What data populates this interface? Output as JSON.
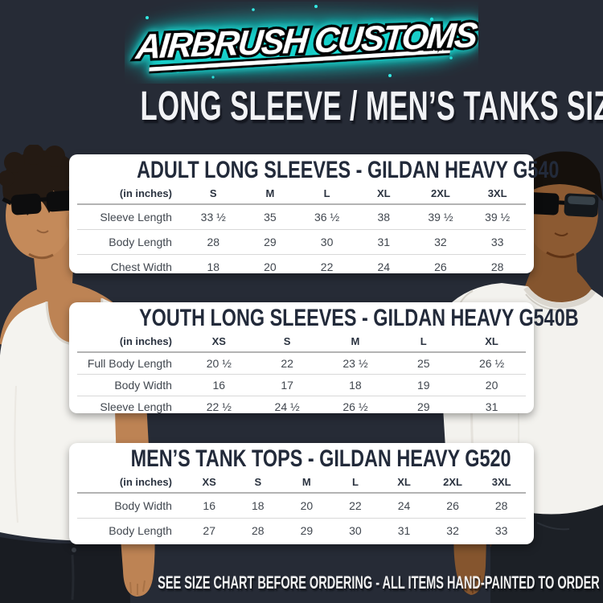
{
  "colors": {
    "bg": "#262b36",
    "card": "#ffffff",
    "title-navy": "#222a3a",
    "heading-white": "#f2f3f6",
    "accent-cyan": "#1fe3dc",
    "table-text": "#41474f"
  },
  "logo": {
    "text": "AIRBRUSH CUSTOMS"
  },
  "heading": "LONG SLEEVE / MEN’S TANKS SIZE CHART",
  "footer": "SEE SIZE CHART BEFORE ORDERING - ALL ITEMS HAND-PAINTED TO ORDER",
  "tables": [
    {
      "title": "ADULT LONG SLEEVES - GILDAN HEAVY G540",
      "unit_label": "(in inches)",
      "columns": [
        "S",
        "M",
        "L",
        "XL",
        "2XL",
        "3XL"
      ],
      "rows": [
        {
          "label": "Sleeve Length",
          "values": [
            "33 ½",
            "35",
            "36 ½",
            "38",
            "39 ½",
            "39 ½"
          ]
        },
        {
          "label": "Body Length",
          "values": [
            "28",
            "29",
            "30",
            "31",
            "32",
            "33"
          ]
        },
        {
          "label": "Chest Width",
          "values": [
            "18",
            "20",
            "22",
            "24",
            "26",
            "28"
          ]
        }
      ]
    },
    {
      "title": "YOUTH LONG SLEEVES - GILDAN HEAVY G540B",
      "unit_label": "(in inches)",
      "columns": [
        "XS",
        "S",
        "M",
        "L",
        "XL"
      ],
      "rows": [
        {
          "label": "Full Body Length",
          "values": [
            "20 ½",
            "22",
            "23 ½",
            "25",
            "26 ½"
          ]
        },
        {
          "label": "Body Width",
          "values": [
            "16",
            "17",
            "18",
            "19",
            "20"
          ]
        },
        {
          "label": "Sleeve Length",
          "values": [
            "22 ½",
            "24 ½",
            "26 ½",
            "29",
            "31"
          ]
        }
      ]
    },
    {
      "title": "MEN’S TANK TOPS - GILDAN HEAVY G520",
      "unit_label": "(in inches)",
      "columns": [
        "XS",
        "S",
        "M",
        "L",
        "XL",
        "2XL",
        "3XL"
      ],
      "rows": [
        {
          "label": "Body Width",
          "values": [
            "16",
            "18",
            "20",
            "22",
            "24",
            "26",
            "28"
          ]
        },
        {
          "label": "Body Length",
          "values": [
            "27",
            "28",
            "29",
            "30",
            "31",
            "32",
            "33"
          ]
        }
      ]
    }
  ]
}
